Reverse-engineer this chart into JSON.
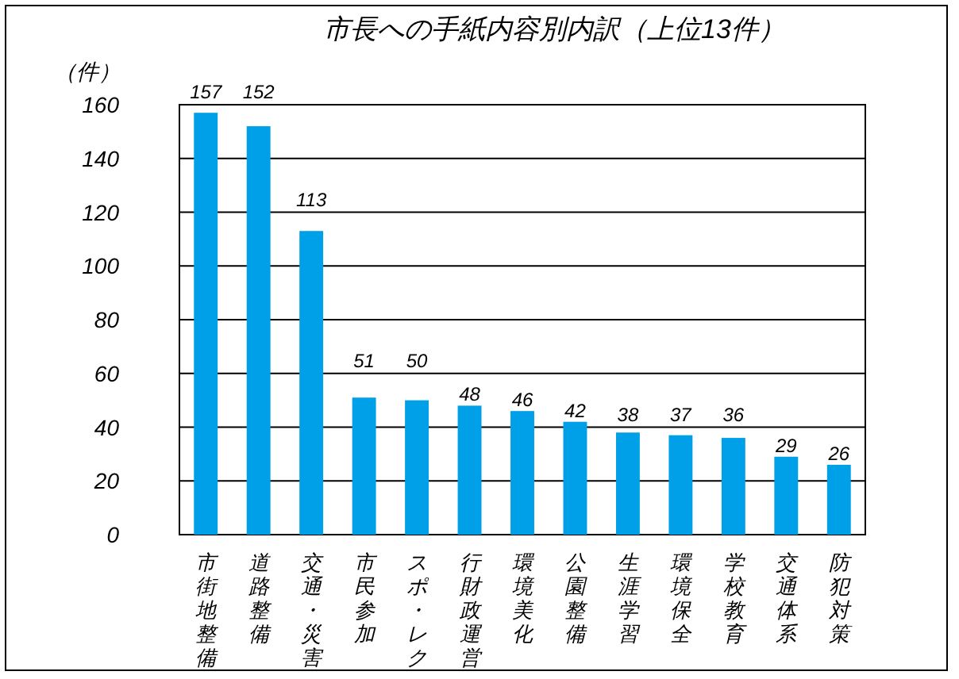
{
  "chart_data": {
    "type": "bar",
    "title": "市長への手紙内容別内訳（上位13件）",
    "ylabel": "（件）",
    "categories": [
      "市街地整備",
      "道路整備",
      "交通・災害",
      "市民参加",
      "スポ・レク",
      "行財政運営",
      "環境美化",
      "公園整備",
      "生涯学習",
      "環境保全",
      "学校教育",
      "交通体系",
      "防犯対策"
    ],
    "values": [
      157,
      152,
      113,
      51,
      50,
      48,
      46,
      42,
      38,
      37,
      36,
      29,
      26
    ],
    "color": "#00a0e9",
    "ylim": [
      0,
      160
    ],
    "yticks": [
      0,
      20,
      40,
      60,
      80,
      100,
      120,
      140,
      160
    ],
    "grid": "y",
    "data_labels": true
  }
}
